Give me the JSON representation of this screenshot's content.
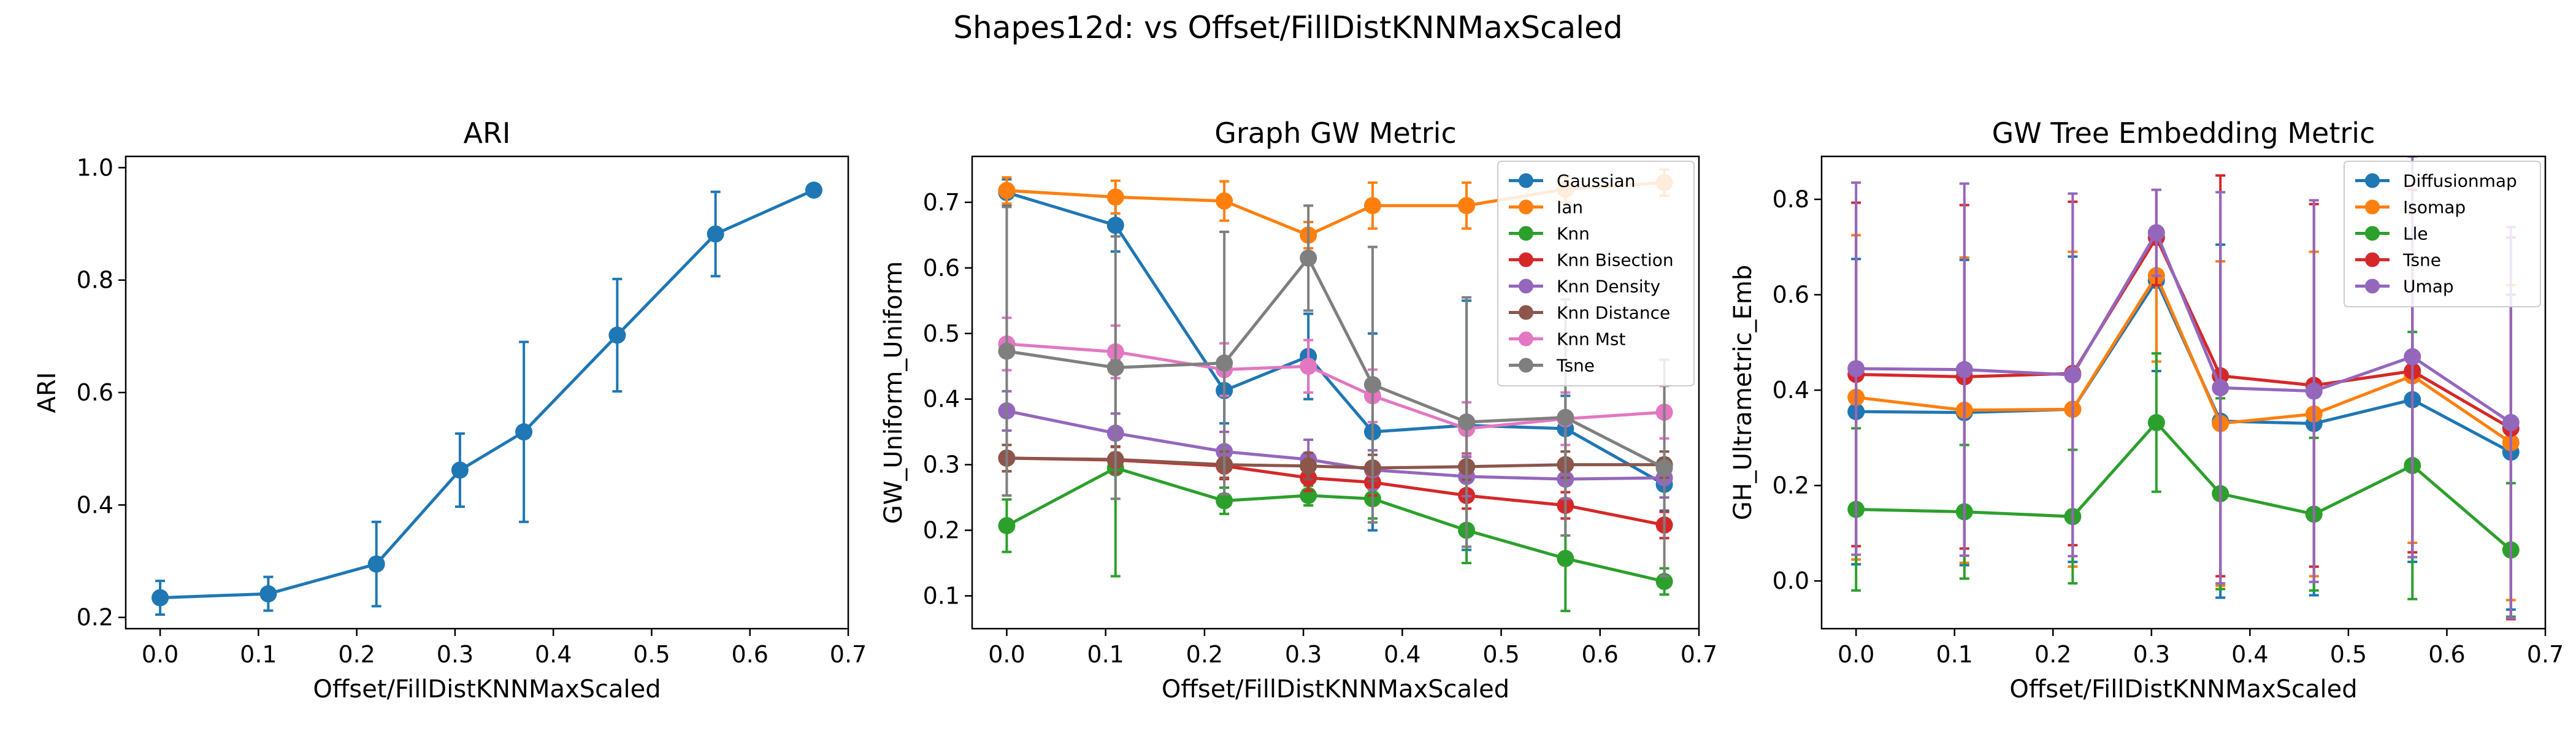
{
  "figure": {
    "title": "Shapes12d: vs Offset/FillDistKNNMaxScaled"
  },
  "chart_data": [
    {
      "type": "line",
      "title": "ARI",
      "xlabel": "Offset/FillDistKNNMaxScaled",
      "ylabel": "ARI",
      "xlim": [
        -0.035,
        0.7
      ],
      "ylim": [
        0.18,
        1.02
      ],
      "xticks": [
        "0.0",
        "0.1",
        "0.2",
        "0.3",
        "0.4",
        "0.5",
        "0.6",
        "0.7"
      ],
      "yticks": [
        "0.2",
        "0.4",
        "0.6",
        "0.8",
        "1.0"
      ],
      "x": [
        0.0,
        0.11,
        0.22,
        0.305,
        0.37,
        0.465,
        0.565,
        0.665
      ],
      "legend": false,
      "series": [
        {
          "color": "#1f77b4",
          "values": [
            0.235,
            0.242,
            0.295,
            0.462,
            0.53,
            0.702,
            0.882,
            0.96
          ],
          "errors": [
            0.03,
            0.03,
            0.075,
            0.065,
            0.16,
            0.1,
            0.075,
            0.005
          ]
        }
      ]
    },
    {
      "type": "line",
      "title": "Graph GW Metric",
      "xlabel": "Offset/FillDistKNNMaxScaled",
      "ylabel": "GW_Uniform_Uniform",
      "xlim": [
        -0.035,
        0.7
      ],
      "ylim": [
        0.05,
        0.77
      ],
      "xticks": [
        "0.0",
        "0.1",
        "0.2",
        "0.3",
        "0.4",
        "0.5",
        "0.6",
        "0.7"
      ],
      "yticks": [
        "0.1",
        "0.2",
        "0.3",
        "0.4",
        "0.5",
        "0.6",
        "0.7"
      ],
      "x": [
        0.0,
        0.11,
        0.22,
        0.305,
        0.37,
        0.465,
        0.565,
        0.665
      ],
      "legend": "top-right",
      "series": [
        {
          "name": "Gaussian",
          "color": "#1f77b4",
          "values": [
            0.715,
            0.665,
            0.413,
            0.465,
            0.35,
            0.36,
            0.355,
            0.27
          ],
          "errors": [
            0.02,
            0.04,
            0.05,
            0.065,
            0.15,
            0.19,
            0.05,
            0.04
          ]
        },
        {
          "name": "Ian",
          "color": "#ff7f0e",
          "values": [
            0.718,
            0.708,
            0.702,
            0.65,
            0.695,
            0.695,
            0.72,
            0.73
          ],
          "errors": [
            0.02,
            0.025,
            0.03,
            0.02,
            0.035,
            0.035,
            0.02,
            0.02
          ]
        },
        {
          "name": "Knn",
          "color": "#2ca02c",
          "values": [
            0.207,
            0.295,
            0.245,
            0.253,
            0.248,
            0.2,
            0.157,
            0.122
          ],
          "errors": [
            0.04,
            0.165,
            0.02,
            0.015,
            0.03,
            0.05,
            0.08,
            0.02
          ]
        },
        {
          "name": "Knn Bisection",
          "color": "#d62728",
          "values": [
            0.31,
            0.307,
            0.298,
            0.28,
            0.273,
            0.253,
            0.238,
            0.208
          ],
          "errors": [
            0.02,
            0.02,
            0.02,
            0.02,
            0.02,
            0.02,
            0.02,
            0.02
          ]
        },
        {
          "name": "Knn Density",
          "color": "#9467bd",
          "values": [
            0.382,
            0.348,
            0.32,
            0.308,
            0.292,
            0.282,
            0.278,
            0.28
          ],
          "errors": [
            0.03,
            0.03,
            0.03,
            0.03,
            0.03,
            0.03,
            0.03,
            0.03
          ]
        },
        {
          "name": "Knn Distance",
          "color": "#8c564b",
          "values": [
            0.31,
            0.308,
            0.3,
            0.298,
            0.295,
            0.297,
            0.3,
            0.3
          ],
          "errors": [
            0.02,
            0.02,
            0.02,
            0.02,
            0.02,
            0.02,
            0.02,
            0.02
          ]
        },
        {
          "name": "Knn Mst",
          "color": "#e377c2",
          "values": [
            0.484,
            0.472,
            0.445,
            0.45,
            0.405,
            0.355,
            0.37,
            0.38
          ],
          "errors": [
            0.04,
            0.04,
            0.04,
            0.04,
            0.04,
            0.04,
            0.04,
            0.04
          ]
        },
        {
          "name": "Tsne",
          "color": "#7f7f7f",
          "values": [
            0.473,
            0.448,
            0.455,
            0.615,
            0.422,
            0.365,
            0.372,
            0.295
          ],
          "errors": [
            0.22,
            0.2,
            0.2,
            0.08,
            0.21,
            0.19,
            0.18,
            0.165
          ]
        }
      ]
    },
    {
      "type": "line",
      "title": "GW Tree Embedding Metric",
      "xlabel": "Offset/FillDistKNNMaxScaled",
      "ylabel": "GH_Ultrametric_Emb",
      "xlim": [
        -0.035,
        0.7
      ],
      "ylim": [
        -0.1,
        0.89
      ],
      "xticks": [
        "0.0",
        "0.1",
        "0.2",
        "0.3",
        "0.4",
        "0.5",
        "0.6",
        "0.7"
      ],
      "yticks": [
        "0.0",
        "0.2",
        "0.4",
        "0.6",
        "0.8"
      ],
      "x": [
        0.0,
        0.11,
        0.22,
        0.305,
        0.37,
        0.465,
        0.565,
        0.665
      ],
      "legend": "top-right",
      "series": [
        {
          "name": "Diffusionmap",
          "color": "#1f77b4",
          "values": [
            0.355,
            0.353,
            0.36,
            0.63,
            0.335,
            0.33,
            0.38,
            0.27
          ],
          "errors": [
            0.32,
            0.32,
            0.32,
            0.19,
            0.37,
            0.36,
            0.34,
            0.33
          ]
        },
        {
          "name": "Isomap",
          "color": "#ff7f0e",
          "values": [
            0.385,
            0.358,
            0.36,
            0.64,
            0.33,
            0.35,
            0.43,
            0.29
          ],
          "errors": [
            0.34,
            0.32,
            0.33,
            0.18,
            0.34,
            0.34,
            0.35,
            0.33
          ]
        },
        {
          "name": "Lle",
          "color": "#2ca02c",
          "values": [
            0.15,
            0.145,
            0.135,
            0.332,
            0.183,
            0.14,
            0.242,
            0.065
          ],
          "errors": [
            0.17,
            0.14,
            0.14,
            0.145,
            0.2,
            0.16,
            0.28,
            0.14
          ]
        },
        {
          "name": "Tsne",
          "color": "#d62728",
          "values": [
            0.433,
            0.428,
            0.435,
            0.72,
            0.43,
            0.41,
            0.44,
            0.32
          ],
          "errors": [
            0.36,
            0.36,
            0.36,
            0.1,
            0.42,
            0.38,
            0.38,
            0.4
          ]
        },
        {
          "name": "Umap",
          "color": "#9467bd",
          "values": [
            0.445,
            0.443,
            0.432,
            0.73,
            0.405,
            0.398,
            0.47,
            0.332
          ],
          "errors": [
            0.39,
            0.39,
            0.38,
            0.09,
            0.41,
            0.4,
            0.42,
            0.41
          ]
        }
      ]
    }
  ]
}
